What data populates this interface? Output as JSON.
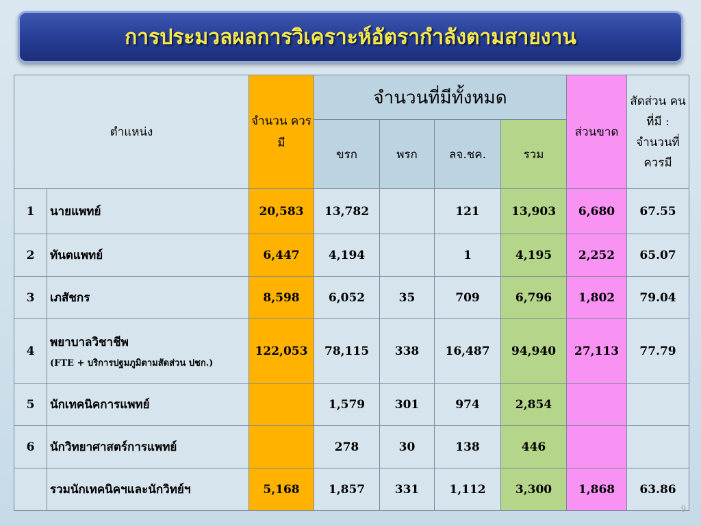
{
  "title": "การประมวลผลการวิเคราะห์อัตรากำลังตามสายงาน",
  "headers": {
    "position": "ตำแหน่ง",
    "required": "จำนวน ควรมี",
    "total_group": "จำนวนที่มีทั้งหมด",
    "civil": "ขรก",
    "gov_employee": "พรก",
    "employee": "ลจ.ชค.",
    "sum": "รวม",
    "shortage": "ส่วนขาด",
    "ratio": "สัดส่วน คนที่มี : จำนวนที่ ควรมี"
  },
  "rows": [
    {
      "no": "1",
      "name": "นายแพทย์",
      "note": "",
      "required": "20,583",
      "civil": "13,782",
      "gov": "",
      "emp": "121",
      "sum": "13,903",
      "shortage": "6,680",
      "ratio": "67.55"
    },
    {
      "no": "2",
      "name": "ทันตแพทย์",
      "note": "",
      "required": "6,447",
      "civil": "4,194",
      "gov": "",
      "emp": "1",
      "sum": "4,195",
      "shortage": "2,252",
      "ratio": "65.07"
    },
    {
      "no": "3",
      "name": "เภสัชกร",
      "note": "",
      "required": "8,598",
      "civil": "6,052",
      "gov": "35",
      "emp": "709",
      "sum": "6,796",
      "shortage": "1,802",
      "ratio": "79.04"
    },
    {
      "no": "4",
      "name": "พยาบาลวิชาชีพ",
      "note": "(FTE + บริการปฐมภูมิตามสัดส่วน ปชก.)",
      "required": "122,053",
      "civil": "78,115",
      "gov": "338",
      "emp": "16,487",
      "sum": "94,940",
      "shortage": "27,113",
      "ratio": "77.79"
    },
    {
      "no": "5",
      "name": "นักเทคนิคการแพทย์",
      "note": "",
      "required": "",
      "civil": "1,579",
      "gov": "301",
      "emp": "974",
      "sum": "2,854",
      "shortage": "",
      "ratio": ""
    },
    {
      "no": "6",
      "name": "นักวิทยาศาสตร์การแพทย์",
      "note": "",
      "required": "",
      "civil": "278",
      "gov": "30",
      "emp": "138",
      "sum": "446",
      "shortage": "",
      "ratio": ""
    },
    {
      "no": "",
      "name": "รวมนักเทคนิคฯและนักวิทย์ฯ",
      "note": "",
      "required": "5,168",
      "civil": "1,857",
      "gov": "331",
      "emp": "1,112",
      "sum": "3,300",
      "shortage": "1,868",
      "ratio": "63.86"
    }
  ],
  "page_number": "9"
}
